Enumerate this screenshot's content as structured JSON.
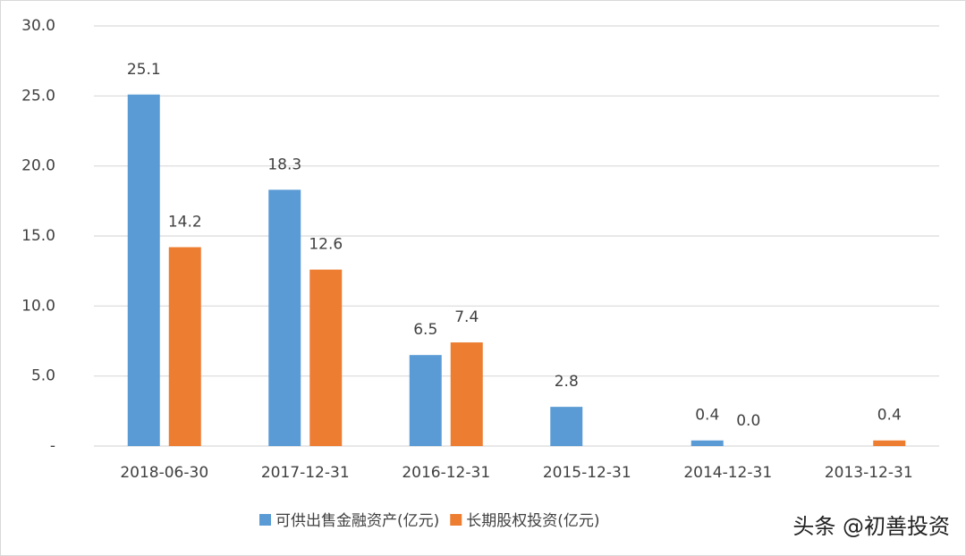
{
  "chart_data": {
    "type": "bar",
    "categories": [
      "2018-06-30",
      "2017-12-31",
      "2016-12-31",
      "2015-12-31",
      "2014-12-31",
      "2013-12-31"
    ],
    "series": [
      {
        "name": "可供出售金融资产(亿元)",
        "color": "#5b9bd5",
        "values": [
          25.1,
          18.3,
          6.5,
          2.8,
          0.4,
          null
        ],
        "value_labels": [
          "25.1",
          "18.3",
          "6.5",
          "2.8",
          "0.4",
          null
        ]
      },
      {
        "name": "长期股权投资(亿元)",
        "color": "#ed7d31",
        "values": [
          14.2,
          12.6,
          7.4,
          null,
          0,
          0.4
        ],
        "value_labels": [
          "14.2",
          "12.6",
          "7.4",
          null,
          "0.0",
          "0.4"
        ]
      }
    ],
    "ylim": [
      0,
      30
    ],
    "yticks": [
      {
        "value": 0,
        "label": "-"
      },
      {
        "value": 5,
        "label": "5.0"
      },
      {
        "value": 10,
        "label": "10.0"
      },
      {
        "value": 15,
        "label": "15.0"
      },
      {
        "value": 20,
        "label": "20.0"
      },
      {
        "value": 25,
        "label": "25.0"
      },
      {
        "value": 30,
        "label": "30.0"
      }
    ],
    "grid": true,
    "legend": "bottom",
    "watermark": "头条 @初善投资"
  }
}
